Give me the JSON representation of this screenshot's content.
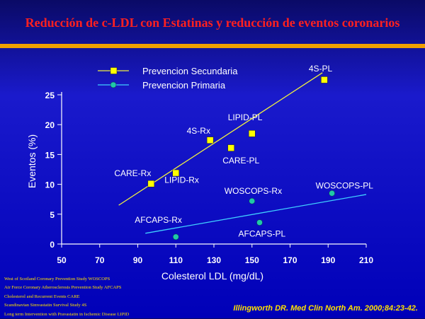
{
  "title": "Reducción de c-LDL con Estatinas y reducción de eventos coronarios",
  "chart_data": {
    "type": "scatter",
    "xlabel": "Colesterol LDL (mg/dL)",
    "ylabel": "Eventos (%)",
    "xlim": [
      50,
      210
    ],
    "ylim": [
      0,
      25
    ],
    "xticks": [
      "50",
      "70",
      "90",
      "110",
      "130",
      "150",
      "170",
      "190",
      "210"
    ],
    "yticks": [
      "0",
      "5",
      "10",
      "15",
      "20",
      "25"
    ],
    "legend_position": "top-left",
    "series": [
      {
        "name": "Prevencion Secundaria",
        "marker": "square",
        "color": "#ffff00",
        "line_color": "#f0f040",
        "points": [
          {
            "label": "4S-PL",
            "x": 188,
            "y": 27.5
          },
          {
            "label": "4S-Rx",
            "x": 128,
            "y": 17.4
          },
          {
            "label": "LIPID-PL",
            "x": 150,
            "y": 18.5
          },
          {
            "label": "CARE-PL",
            "x": 139,
            "y": 16.1
          },
          {
            "label": "LIPID-Rx",
            "x": 110,
            "y": 11.9
          },
          {
            "label": "CARE-Rx",
            "x": 97,
            "y": 10.1
          }
        ],
        "trend": [
          [
            80,
            6.5
          ],
          [
            187,
            28.7
          ]
        ]
      },
      {
        "name": "Prevencion Primaria",
        "marker": "circle",
        "color": "#20c8a8",
        "line_color": "#40d0ff",
        "points": [
          {
            "label": "WOSCOPS-PL",
            "x": 192,
            "y": 8.5
          },
          {
            "label": "WOSCOPS-Rx",
            "x": 150,
            "y": 7.2
          },
          {
            "label": "AFCAPS-PL",
            "x": 154,
            "y": 3.6
          },
          {
            "label": "AFCAPS-Rx",
            "x": 110,
            "y": 1.2
          }
        ],
        "trend": [
          [
            94,
            1.8
          ],
          [
            210,
            8.3
          ]
        ]
      }
    ]
  },
  "footnotes": [
    "West of Scotland Coronary Prevention Study   WOSCOPS",
    "Air Force Coronary Atherosclerosis Prevention Study   AFCAPS",
    "Cholesterol and Recurrent Events     CARE",
    "Scandinavian Simvastatin Survival Study   4S",
    "Long term Intervention with Pravastatin in Ischemic Disease   LIPID"
  ],
  "citation": "Illingworth DR. Med Clin North Am. 2000;84:23-42."
}
